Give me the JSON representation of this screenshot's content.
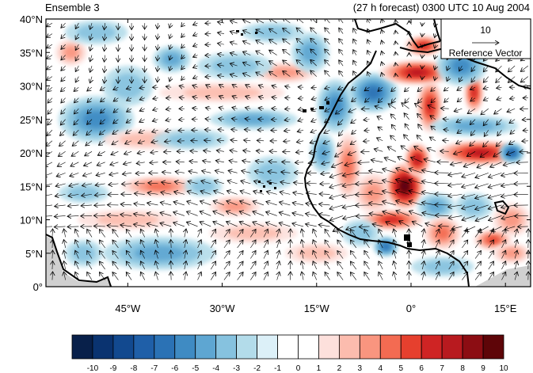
{
  "titles": {
    "left": "Ensemble 3",
    "right": "(27 h forecast) 0300 UTC 10 Aug 2004"
  },
  "map": {
    "lat_range": [
      0,
      40
    ],
    "lon_range": [
      -58,
      19
    ],
    "lat_ticks": [
      {
        "lat": 40,
        "label": "40°N"
      },
      {
        "lat": 35,
        "label": "35°N"
      },
      {
        "lat": 30,
        "label": "30°N"
      },
      {
        "lat": 25,
        "label": "25°N"
      },
      {
        "lat": 20,
        "label": "20°N"
      },
      {
        "lat": 15,
        "label": "15°N"
      },
      {
        "lat": 10,
        "label": "10°N"
      },
      {
        "lat": 5,
        "label": "5°N"
      },
      {
        "lat": 0,
        "label": "0°"
      }
    ],
    "lon_ticks": [
      {
        "lon": -45,
        "label": "45°W"
      },
      {
        "lon": -30,
        "label": "30°W"
      },
      {
        "lon": -15,
        "label": "15°W"
      },
      {
        "lon": 0,
        "label": "0°"
      },
      {
        "lon": 15,
        "label": "15°E"
      }
    ]
  },
  "reference_vector": {
    "magnitude": "10",
    "label": "Reference Vector"
  },
  "colorbar": {
    "labels": [
      "-10",
      "-9",
      "-8",
      "-7",
      "-6",
      "-5",
      "-4",
      "-3",
      "-2",
      "-1",
      "0",
      "1",
      "2",
      "3",
      "4",
      "5",
      "6",
      "7",
      "8",
      "9",
      "10"
    ],
    "colors": [
      "#08204a",
      "#0a3370",
      "#12498f",
      "#1f5fa8",
      "#2b72b5",
      "#3f8bc3",
      "#5ea6d2",
      "#86c2df",
      "#b3dcea",
      "#dcf0f8",
      "#ffffff",
      "#ffffff",
      "#fde0dc",
      "#fcbcae",
      "#f9957f",
      "#f36b52",
      "#e6402e",
      "#cf2424",
      "#b81a1f",
      "#8c0d13",
      "#5e0508"
    ]
  },
  "fields": {
    "anomaly_blobs": [
      {
        "lon": -54,
        "lat": 35,
        "rx": 2.5,
        "ry": 2,
        "v": 3
      },
      {
        "lon": -50,
        "lat": 25,
        "rx": 6,
        "ry": 3.5,
        "v": -4
      },
      {
        "lon": -45,
        "lat": 30,
        "rx": 4,
        "ry": 3,
        "v": -2
      },
      {
        "lon": -38,
        "lat": 34,
        "rx": 3,
        "ry": 2,
        "v": -3
      },
      {
        "lon": -42,
        "lat": 22,
        "rx": 7,
        "ry": 1.5,
        "v": 2
      },
      {
        "lon": -30,
        "lat": 29,
        "rx": 10,
        "ry": 1.5,
        "v": 2
      },
      {
        "lon": -20,
        "lat": 32,
        "rx": 5,
        "ry": 1.5,
        "v": 3
      },
      {
        "lon": -28,
        "lat": 33,
        "rx": 6,
        "ry": 2,
        "v": -2
      },
      {
        "lon": -16,
        "lat": 35,
        "rx": 3,
        "ry": 3,
        "v": -3
      },
      {
        "lon": -22,
        "lat": 38,
        "rx": 5,
        "ry": 1.5,
        "v": -2
      },
      {
        "lon": -25,
        "lat": 25,
        "rx": 7,
        "ry": 1.5,
        "v": -3
      },
      {
        "lon": -40,
        "lat": 15,
        "rx": 6,
        "ry": 1.5,
        "v": 4
      },
      {
        "lon": -33,
        "lat": 15,
        "rx": 3,
        "ry": 1.5,
        "v": -2
      },
      {
        "lon": -28,
        "lat": 12,
        "rx": 4,
        "ry": 1.5,
        "v": 3
      },
      {
        "lon": -22,
        "lat": 17,
        "rx": 4,
        "ry": 2.5,
        "v": -2
      },
      {
        "lon": -25,
        "lat": 8,
        "rx": 7,
        "ry": 1.5,
        "v": 2
      },
      {
        "lon": -45,
        "lat": 10,
        "rx": 8,
        "ry": 1.5,
        "v": 2
      },
      {
        "lon": -40,
        "lat": 5,
        "rx": 9,
        "ry": 2.5,
        "v": -3
      },
      {
        "lon": -52,
        "lat": 5,
        "rx": 3,
        "ry": 2,
        "v": -2
      },
      {
        "lon": -14,
        "lat": 20,
        "rx": 2,
        "ry": 3,
        "v": -3
      },
      {
        "lon": -12,
        "lat": 27,
        "rx": 3,
        "ry": 4,
        "v": -4
      },
      {
        "lon": -6,
        "lat": 29,
        "rx": 4,
        "ry": 3,
        "v": -5
      },
      {
        "lon": -10,
        "lat": 18,
        "rx": 2,
        "ry": 5,
        "v": 4
      },
      {
        "lon": -6,
        "lat": 14,
        "rx": 3,
        "ry": 3,
        "v": 3
      },
      {
        "lon": -1,
        "lat": 15,
        "rx": 3,
        "ry": 3.5,
        "v": 10
      },
      {
        "lon": 1,
        "lat": 19,
        "rx": 2,
        "ry": 2.5,
        "v": 7
      },
      {
        "lon": 3,
        "lat": 27,
        "rx": 2,
        "ry": 4,
        "v": 6
      },
      {
        "lon": 1,
        "lat": 32,
        "rx": 6,
        "ry": 1.8,
        "v": 7
      },
      {
        "lon": 2,
        "lat": 36,
        "rx": 3,
        "ry": 1.5,
        "v": 6
      },
      {
        "lon": -3,
        "lat": 10,
        "rx": 5,
        "ry": 1.5,
        "v": 6
      },
      {
        "lon": -4,
        "lat": 6,
        "rx": 2,
        "ry": 1.5,
        "v": -5
      },
      {
        "lon": -8,
        "lat": 8,
        "rx": 3,
        "ry": 2,
        "v": -2
      },
      {
        "lon": 4,
        "lat": 12,
        "rx": 3,
        "ry": 2,
        "v": -3
      },
      {
        "lon": 5,
        "lat": 8,
        "rx": 3,
        "ry": 2.5,
        "v": 4
      },
      {
        "lon": 11,
        "lat": 20,
        "rx": 7,
        "ry": 1.8,
        "v": 7
      },
      {
        "lon": 10,
        "lat": 29,
        "rx": 1.5,
        "ry": 3,
        "v": 6
      },
      {
        "lon": 10,
        "lat": 24,
        "rx": 7,
        "ry": 1.5,
        "v": -3
      },
      {
        "lon": 8,
        "lat": 33,
        "rx": 4,
        "ry": 3,
        "v": -4
      },
      {
        "lon": 16,
        "lat": 20,
        "rx": 2,
        "ry": 1.5,
        "v": -6
      },
      {
        "lon": 16,
        "lat": 10,
        "rx": 3,
        "ry": 2.5,
        "v": 3
      },
      {
        "lon": 13,
        "lat": 7,
        "rx": 3,
        "ry": 1.5,
        "v": 5
      },
      {
        "lon": 10,
        "lat": 12,
        "rx": 3,
        "ry": 2,
        "v": -2
      },
      {
        "lon": 5,
        "lat": 3,
        "rx": 5,
        "ry": 1.5,
        "v": -2
      },
      {
        "lon": -15,
        "lat": 5,
        "rx": 5,
        "ry": 1.5,
        "v": 2
      },
      {
        "lon": 16,
        "lat": 5,
        "rx": 3,
        "ry": 1.5,
        "v": 3
      },
      {
        "lon": -50,
        "lat": 38,
        "rx": 5,
        "ry": 1.8,
        "v": -2
      },
      {
        "lon": -35,
        "lat": 22,
        "rx": 6,
        "ry": 1.5,
        "v": -2
      },
      {
        "lon": -52,
        "lat": 14,
        "rx": 4,
        "ry": 1.5,
        "v": -2
      }
    ]
  }
}
